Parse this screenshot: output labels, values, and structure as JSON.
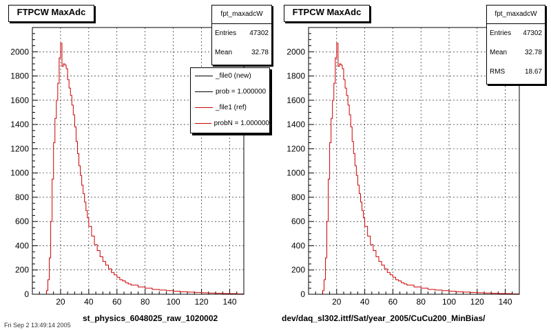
{
  "pads": [
    {
      "title": "FTPCW MaxAdc",
      "stats": {
        "name": "fpt_maxadcW",
        "rows": [
          {
            "label": "Entries",
            "value": "47302"
          },
          {
            "label": "Mean",
            "value": "32.78"
          }
        ]
      },
      "legend": [
        {
          "label": "_file0 (new)",
          "color": "#000000"
        },
        {
          "label": "prob = 1.000000",
          "color": "#000000"
        },
        {
          "label": "_file1 (ref)",
          "color": "#cc0000"
        },
        {
          "label": "probN = 1.000000",
          "color": "#cc0000"
        }
      ],
      "xlabel": "st_physics_6048025_raw_1020002"
    },
    {
      "title": "FTPCW MaxAdc",
      "stats": {
        "name": "fpt_maxadcW",
        "rows": [
          {
            "label": "Entries",
            "value": "47302"
          },
          {
            "label": "Mean",
            "value": "32.78"
          },
          {
            "label": "RMS",
            "value": "18.67"
          }
        ]
      },
      "legend": [],
      "xlabel": "dev/daq_sl302.ittf/Sat/year_2005/CuCu200_MinBias/"
    }
  ],
  "footer": "Fri Sep  2 13:49:14 2005",
  "chart_data": [
    {
      "type": "line",
      "title": "FTPCW MaxAdc",
      "xlabel": "st_physics_6048025_raw_1020002",
      "ylabel": "",
      "xlim": [
        0,
        150
      ],
      "ylim": [
        0,
        2200
      ],
      "xticks": [
        20,
        40,
        60,
        80,
        100,
        120,
        140
      ],
      "yticks": [
        0,
        200,
        400,
        600,
        800,
        1000,
        1200,
        1400,
        1600,
        1800,
        2000
      ],
      "grid": true,
      "legend_position": "top-right",
      "series": [
        {
          "name": "_file1 (ref)",
          "color": "#cc0000",
          "step": true,
          "x": [
            8,
            10,
            11,
            12,
            13,
            14,
            15,
            16,
            17,
            18,
            19,
            20,
            21,
            22,
            23,
            24,
            25,
            26,
            27,
            28,
            29,
            30,
            31,
            32,
            33,
            34,
            35,
            36,
            37,
            38,
            39,
            40,
            42,
            44,
            46,
            48,
            50,
            52,
            54,
            56,
            58,
            60,
            62,
            64,
            66,
            68,
            70,
            75,
            80,
            85,
            90,
            95,
            100,
            105,
            110,
            115,
            120,
            125,
            130,
            135,
            140,
            145,
            150
          ],
          "values": [
            0,
            30,
            120,
            300,
            600,
            950,
            1250,
            1450,
            1600,
            1740,
            1950,
            2070,
            1880,
            1900,
            1890,
            1860,
            1770,
            1700,
            1640,
            1560,
            1480,
            1380,
            1260,
            1160,
            1060,
            980,
            900,
            830,
            760,
            690,
            630,
            560,
            480,
            410,
            360,
            310,
            270,
            240,
            210,
            180,
            160,
            140,
            120,
            110,
            95,
            85,
            75,
            60,
            50,
            40,
            35,
            30,
            25,
            20,
            18,
            15,
            12,
            10,
            8,
            6,
            5,
            3,
            0
          ]
        }
      ]
    },
    {
      "type": "line",
      "title": "FTPCW MaxAdc",
      "xlabel": "dev/daq_sl302.ittf/Sat/year_2005/CuCu200_MinBias/",
      "ylabel": "",
      "xlim": [
        0,
        150
      ],
      "ylim": [
        0,
        2200
      ],
      "xticks": [
        20,
        40,
        60,
        80,
        100,
        120,
        140
      ],
      "yticks": [
        0,
        200,
        400,
        600,
        800,
        1000,
        1200,
        1400,
        1600,
        1800,
        2000
      ],
      "grid": true,
      "series": [
        {
          "name": "",
          "color": "#cc0000",
          "step": true,
          "x": [
            8,
            10,
            11,
            12,
            13,
            14,
            15,
            16,
            17,
            18,
            19,
            20,
            21,
            22,
            23,
            24,
            25,
            26,
            27,
            28,
            29,
            30,
            31,
            32,
            33,
            34,
            35,
            36,
            37,
            38,
            39,
            40,
            42,
            44,
            46,
            48,
            50,
            52,
            54,
            56,
            58,
            60,
            62,
            64,
            66,
            68,
            70,
            75,
            80,
            85,
            90,
            95,
            100,
            105,
            110,
            115,
            120,
            125,
            130,
            135,
            140,
            145,
            150
          ],
          "values": [
            0,
            30,
            120,
            300,
            600,
            950,
            1250,
            1450,
            1600,
            1740,
            1950,
            2070,
            1880,
            1900,
            1890,
            1860,
            1770,
            1700,
            1640,
            1560,
            1480,
            1380,
            1260,
            1160,
            1060,
            980,
            900,
            830,
            760,
            690,
            630,
            560,
            480,
            410,
            360,
            310,
            270,
            240,
            210,
            180,
            160,
            140,
            120,
            110,
            95,
            85,
            75,
            60,
            50,
            40,
            35,
            30,
            25,
            20,
            18,
            15,
            12,
            10,
            8,
            6,
            5,
            3,
            0
          ]
        }
      ]
    }
  ]
}
